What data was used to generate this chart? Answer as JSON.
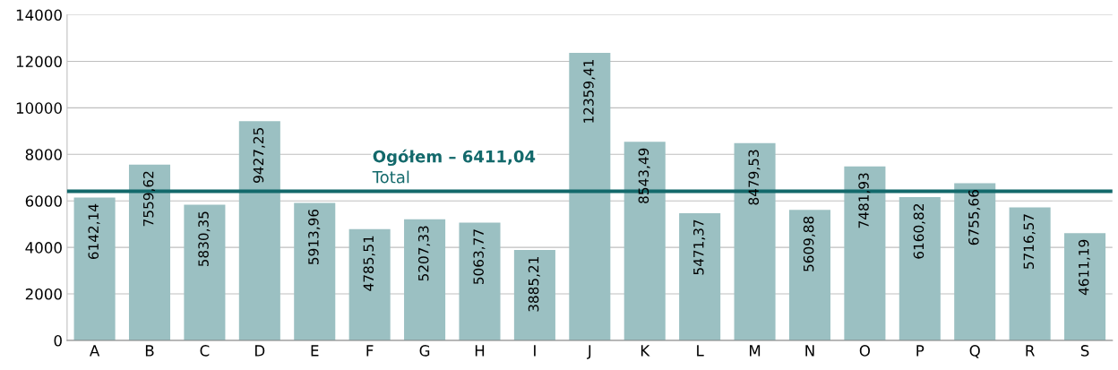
{
  "chart_data": {
    "type": "bar",
    "categories": [
      "A",
      "B",
      "C",
      "D",
      "E",
      "F",
      "G",
      "H",
      "I",
      "J",
      "K",
      "L",
      "M",
      "N",
      "O",
      "P",
      "Q",
      "R",
      "S"
    ],
    "values": [
      6142.14,
      7559.62,
      5830.35,
      9427.25,
      5913.96,
      4785.51,
      5207.33,
      5063.77,
      3885.21,
      12359.41,
      8543.49,
      5471.37,
      8479.53,
      5609.88,
      7481.93,
      6160.82,
      6755.66,
      5716.57,
      4611.19
    ],
    "value_labels": [
      "6142,14",
      "7559,62",
      "5830,35",
      "9427,25",
      "5913,96",
      "4785,51",
      "5207,33",
      "5063,77",
      "3885,21",
      "12359,41",
      "8543,49",
      "5471,37",
      "8479,53",
      "5609,88",
      "7481,93",
      "6160,82",
      "6755,66",
      "5716,57",
      "4611,19"
    ],
    "color": "#9bc0c2",
    "ylim": [
      0,
      14000
    ],
    "yticks": [
      0,
      2000,
      4000,
      6000,
      8000,
      10000,
      12000,
      14000
    ],
    "grid": "y",
    "ref_lines": [
      {
        "axis": "y",
        "value": 6411.04,
        "label": "Ogółem – 6411,04\nTotal",
        "color": "#13696b",
        "line_style": "solid"
      }
    ]
  }
}
